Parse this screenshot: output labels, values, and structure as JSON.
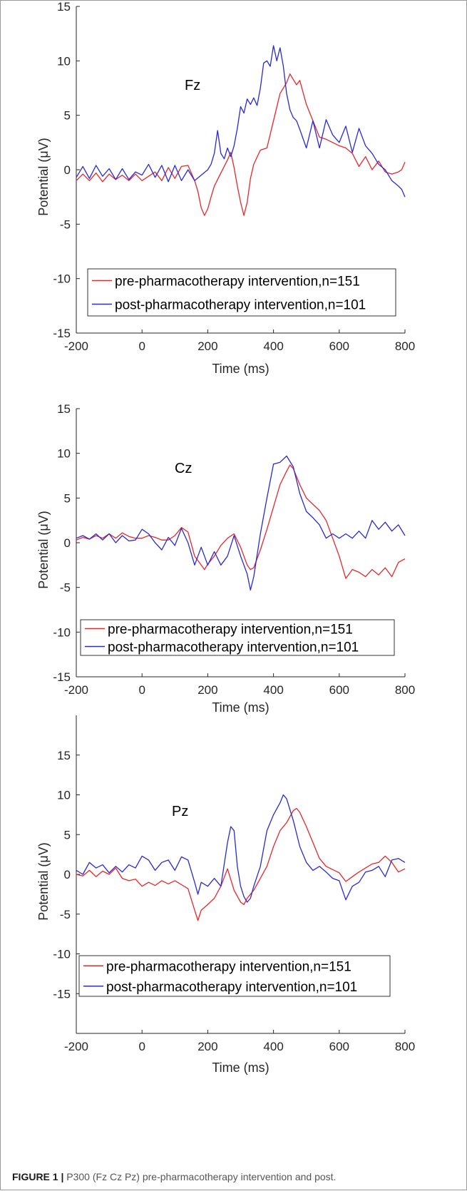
{
  "chart_data": [
    {
      "type": "line",
      "panel_label": "Fz",
      "xlabel": "Time (ms)",
      "ylabel": "Potential (μV)",
      "xlim": [
        -200,
        800
      ],
      "ylim": [
        -15,
        15
      ],
      "xticks": [
        -200,
        0,
        200,
        400,
        600,
        800
      ],
      "yticks": [
        -15,
        -10,
        -5,
        0,
        5,
        10,
        15
      ],
      "legend_position": "lower-left",
      "series": [
        {
          "name": "pre-pharmacotherapy intervention,n=151",
          "color": "#e8262a",
          "x": [
            -200,
            -180,
            -160,
            -140,
            -120,
            -100,
            -80,
            -60,
            -40,
            -20,
            0,
            20,
            40,
            60,
            80,
            100,
            120,
            140,
            160,
            170,
            180,
            190,
            200,
            210,
            220,
            240,
            260,
            270,
            280,
            290,
            300,
            310,
            320,
            330,
            340,
            360,
            380,
            400,
            420,
            440,
            450,
            460,
            470,
            480,
            500,
            520,
            540,
            560,
            580,
            600,
            620,
            640,
            660,
            680,
            700,
            720,
            740,
            760,
            780,
            790,
            800
          ],
          "y": [
            -1.0,
            -0.4,
            -1.0,
            -0.3,
            -1.1,
            -0.4,
            -0.9,
            -0.5,
            -1.0,
            -0.4,
            -1.0,
            -0.6,
            -0.2,
            -1.0,
            0.2,
            -0.8,
            0.3,
            0.4,
            -1.0,
            -2.0,
            -3.5,
            -4.2,
            -3.6,
            -2.5,
            -1.5,
            -0.3,
            0.9,
            1.6,
            0.2,
            -1.5,
            -3.0,
            -4.2,
            -3.0,
            -0.8,
            0.5,
            1.8,
            2.0,
            4.5,
            7.0,
            8.0,
            8.8,
            8.3,
            7.8,
            8.2,
            6.0,
            4.5,
            3.0,
            2.8,
            2.5,
            2.2,
            2.0,
            1.5,
            0.3,
            1.2,
            0.0,
            0.8,
            -0.2,
            -0.4,
            -0.2,
            0.0,
            0.7
          ]
        },
        {
          "name": "post-pharmacotherapy intervention,n=101",
          "color": "#2929d6",
          "x": [
            -200,
            -180,
            -160,
            -140,
            -120,
            -100,
            -80,
            -60,
            -40,
            -20,
            0,
            20,
            40,
            60,
            80,
            100,
            120,
            140,
            160,
            180,
            200,
            210,
            220,
            230,
            240,
            250,
            260,
            270,
            280,
            290,
            300,
            310,
            320,
            330,
            340,
            350,
            360,
            370,
            380,
            390,
            400,
            410,
            420,
            430,
            440,
            450,
            460,
            470,
            480,
            500,
            520,
            540,
            560,
            580,
            600,
            620,
            640,
            660,
            680,
            700,
            720,
            740,
            760,
            780,
            790,
            800
          ],
          "y": [
            -0.7,
            0.3,
            -0.8,
            0.4,
            -0.6,
            0.1,
            -0.9,
            0.1,
            -0.9,
            -0.2,
            -0.5,
            0.5,
            -0.7,
            0.4,
            -1.1,
            0.4,
            -1.0,
            0.0,
            -1.0,
            -0.5,
            0.0,
            0.5,
            1.5,
            3.6,
            1.5,
            1.0,
            2.0,
            1.2,
            2.2,
            3.8,
            5.8,
            5.2,
            6.5,
            6.0,
            6.6,
            5.9,
            7.5,
            9.8,
            10.0,
            9.5,
            11.4,
            10.0,
            11.2,
            9.5,
            7.0,
            5.5,
            4.8,
            4.5,
            3.7,
            2.0,
            4.5,
            2.0,
            4.6,
            3.2,
            2.5,
            4.0,
            1.6,
            3.8,
            2.2,
            1.5,
            0.5,
            0.0,
            -1.0,
            -1.5,
            -1.8,
            -2.5
          ]
        }
      ]
    },
    {
      "type": "line",
      "panel_label": "Cz",
      "xlabel": "Time (ms)",
      "ylabel": "Potential (μV)",
      "xlim": [
        -200,
        800
      ],
      "ylim": [
        -15,
        15
      ],
      "xticks": [
        -200,
        0,
        200,
        400,
        600,
        800
      ],
      "yticks": [
        -15,
        -10,
        -5,
        0,
        5,
        10,
        15
      ],
      "legend_position": "lower-left",
      "series": [
        {
          "name": "pre-pharmacotherapy intervention,n=151",
          "color": "#e8262a",
          "x": [
            -200,
            -180,
            -160,
            -140,
            -120,
            -100,
            -80,
            -60,
            -40,
            -20,
            0,
            20,
            40,
            60,
            80,
            100,
            120,
            140,
            160,
            180,
            190,
            200,
            220,
            240,
            260,
            280,
            300,
            320,
            330,
            340,
            360,
            380,
            400,
            420,
            440,
            450,
            460,
            480,
            500,
            520,
            540,
            560,
            580,
            600,
            620,
            640,
            660,
            680,
            700,
            720,
            740,
            760,
            780,
            800
          ],
          "y": [
            0.3,
            0.6,
            0.4,
            0.8,
            0.5,
            1.0,
            0.5,
            1.1,
            0.7,
            0.5,
            0.5,
            0.8,
            0.6,
            0.3,
            0.3,
            0.8,
            1.7,
            1.2,
            -1.5,
            -2.5,
            -3.0,
            -2.4,
            -1.5,
            -0.3,
            0.5,
            1.0,
            -0.5,
            -2.5,
            -3.0,
            -2.8,
            -0.8,
            1.5,
            4.0,
            6.5,
            8.0,
            8.7,
            8.3,
            6.5,
            5.0,
            4.3,
            3.6,
            2.5,
            0.5,
            -1.5,
            -4.0,
            -3.0,
            -3.3,
            -3.8,
            -3.0,
            -3.6,
            -2.8,
            -3.8,
            -2.2,
            -1.8
          ]
        },
        {
          "name": "post-pharmacotherapy intervention,n=101",
          "color": "#2929d6",
          "x": [
            -200,
            -180,
            -160,
            -140,
            -120,
            -100,
            -80,
            -60,
            -40,
            -20,
            0,
            20,
            40,
            60,
            80,
            100,
            120,
            140,
            160,
            180,
            200,
            220,
            240,
            260,
            280,
            300,
            320,
            330,
            340,
            360,
            380,
            400,
            420,
            440,
            460,
            480,
            500,
            520,
            540,
            560,
            580,
            600,
            620,
            640,
            660,
            680,
            700,
            720,
            740,
            760,
            780,
            800
          ],
          "y": [
            0.5,
            0.8,
            0.4,
            1.0,
            0.3,
            1.0,
            0.0,
            0.8,
            0.2,
            0.3,
            1.5,
            1.0,
            0.0,
            -0.8,
            0.6,
            -0.3,
            1.6,
            0.0,
            -2.5,
            -0.5,
            -2.5,
            -1.0,
            -2.5,
            -1.5,
            0.8,
            -1.5,
            -3.5,
            -5.3,
            -3.8,
            1.0,
            5.0,
            8.8,
            9.0,
            9.7,
            8.5,
            5.5,
            3.5,
            2.8,
            2.0,
            0.5,
            1.0,
            0.5,
            1.0,
            0.5,
            1.3,
            0.5,
            2.5,
            1.5,
            2.3,
            1.3,
            2.0,
            0.8
          ]
        }
      ]
    },
    {
      "type": "line",
      "panel_label": "Pz",
      "xlabel": "Time (ms)",
      "ylabel": "Potential (μV)",
      "xlim": [
        -200,
        800
      ],
      "ylim": [
        -20,
        20
      ],
      "xticks": [
        -200,
        0,
        200,
        400,
        600,
        800
      ],
      "yticks": [
        -15,
        -10,
        -5,
        0,
        5,
        10,
        15
      ],
      "legend_position": "lower-left",
      "series": [
        {
          "name": "pre-pharmacotherapy intervention,n=151",
          "color": "#e8262a",
          "x": [
            -200,
            -180,
            -160,
            -140,
            -120,
            -100,
            -80,
            -60,
            -40,
            -20,
            0,
            20,
            40,
            60,
            80,
            100,
            120,
            140,
            160,
            170,
            180,
            200,
            220,
            240,
            260,
            280,
            300,
            310,
            320,
            340,
            360,
            380,
            400,
            420,
            440,
            460,
            470,
            480,
            500,
            520,
            540,
            560,
            580,
            600,
            620,
            640,
            660,
            680,
            700,
            720,
            740,
            760,
            780,
            800
          ],
          "y": [
            0.0,
            -0.2,
            0.5,
            -0.3,
            0.4,
            0.0,
            0.8,
            -0.5,
            -0.8,
            -0.6,
            -1.5,
            -1.0,
            -1.4,
            -0.8,
            -1.2,
            -0.8,
            -1.3,
            -1.8,
            -4.5,
            -5.8,
            -4.5,
            -3.8,
            -3.0,
            -1.5,
            0.7,
            -2.0,
            -3.5,
            -3.8,
            -3.0,
            -2.0,
            -0.5,
            1.0,
            3.5,
            5.5,
            6.5,
            8.0,
            8.3,
            7.8,
            6.0,
            4.0,
            2.0,
            1.0,
            0.6,
            0.2,
            -0.9,
            -0.3,
            0.3,
            0.8,
            1.3,
            1.5,
            2.3,
            1.5,
            0.3,
            0.7
          ]
        },
        {
          "name": "post-pharmacotherapy intervention,n=101",
          "color": "#2929d6",
          "x": [
            -200,
            -180,
            -160,
            -140,
            -120,
            -100,
            -80,
            -60,
            -40,
            -20,
            0,
            20,
            40,
            60,
            80,
            100,
            120,
            140,
            160,
            170,
            180,
            200,
            220,
            240,
            260,
            270,
            280,
            290,
            300,
            310,
            320,
            330,
            340,
            360,
            380,
            400,
            420,
            430,
            440,
            460,
            480,
            500,
            520,
            540,
            560,
            580,
            600,
            620,
            640,
            660,
            680,
            700,
            720,
            740,
            760,
            780,
            800
          ],
          "y": [
            0.5,
            0.0,
            1.5,
            0.8,
            1.2,
            0.2,
            1.0,
            0.3,
            1.2,
            0.8,
            2.3,
            1.8,
            0.5,
            1.5,
            1.8,
            0.5,
            2.2,
            1.8,
            -1.0,
            -2.5,
            -1.0,
            -1.5,
            -0.5,
            -1.5,
            4.0,
            6.0,
            5.5,
            1.0,
            -1.5,
            -2.8,
            -3.5,
            -3.0,
            -1.5,
            1.0,
            5.5,
            7.5,
            9.0,
            10.0,
            9.5,
            6.8,
            3.5,
            1.5,
            0.5,
            1.0,
            0.3,
            -0.5,
            -0.8,
            -3.2,
            -1.5,
            -1.0,
            0.3,
            0.5,
            1.0,
            -0.3,
            1.8,
            2.0,
            1.5
          ]
        }
      ]
    }
  ],
  "caption": {
    "label": "FIGURE 1 |",
    "text": " P300 (Fz Cz Pz) pre-pharmacotherapy intervention and post."
  }
}
